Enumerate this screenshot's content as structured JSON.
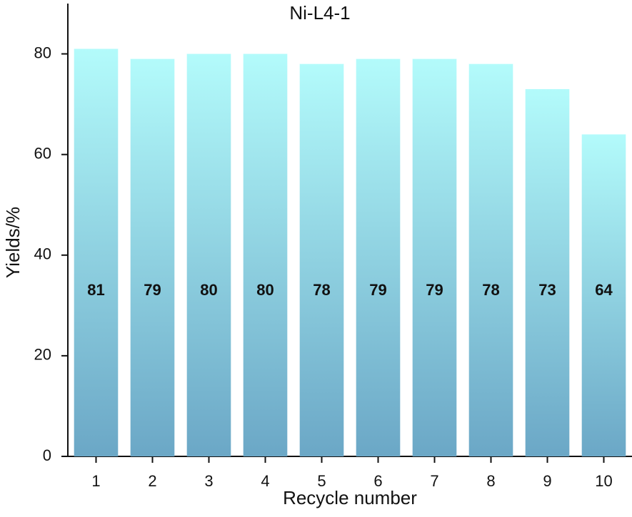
{
  "chart_data": {
    "type": "bar",
    "title": "Ni-L4-1",
    "x_label": "Recycle number",
    "y_label": "Yields/%",
    "categories": [
      "1",
      "2",
      "3",
      "4",
      "5",
      "6",
      "7",
      "8",
      "9",
      "10"
    ],
    "values": [
      81,
      79,
      80,
      80,
      78,
      79,
      79,
      78,
      73,
      64
    ],
    "color": [
      "#b3fbfb",
      "#6ba7c6"
    ],
    "ylim": [
      0,
      90
    ],
    "yticks": [
      0,
      20,
      40,
      60,
      80
    ],
    "grid": false
  }
}
